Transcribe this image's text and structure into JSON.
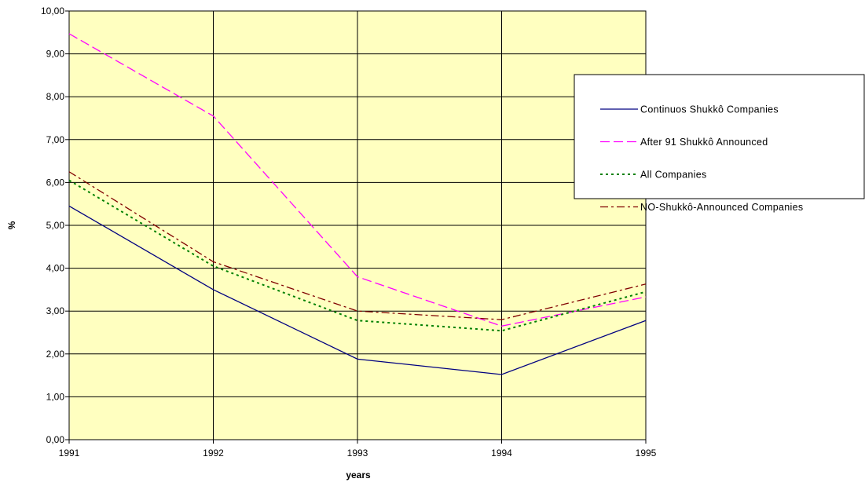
{
  "chart_data": {
    "type": "line",
    "title": "",
    "xlabel": "years",
    "ylabel": "%",
    "x": [
      1991,
      1992,
      1993,
      1994,
      1995
    ],
    "x_tick_labels": [
      "1991",
      "1992",
      "1993",
      "1994",
      "1995"
    ],
    "ylim": [
      0,
      10
    ],
    "y_tick_labels": [
      "0,00",
      "1,00",
      "2,00",
      "3,00",
      "4,00",
      "5,00",
      "6,00",
      "7,00",
      "8,00",
      "9,00",
      "10,00"
    ],
    "grid": true,
    "plot_background": "#ffffc0",
    "legend": "right",
    "series": [
      {
        "name": "Continuos Shukkô Companies",
        "values": [
          5.45,
          3.5,
          1.88,
          1.52,
          2.78
        ],
        "color": "#000080",
        "dash": "solid"
      },
      {
        "name": "After 91 Shukkô Announced",
        "values": [
          9.47,
          7.55,
          3.8,
          2.65,
          3.33
        ],
        "color": "#ff00ff",
        "dash": "dashed"
      },
      {
        "name": "All Companies",
        "values": [
          6.05,
          4.05,
          2.78,
          2.54,
          3.45
        ],
        "color": "#008000",
        "dash": "dotted"
      },
      {
        "name": "NO-Shukkô-Announced Companies",
        "values": [
          6.25,
          4.15,
          3.0,
          2.8,
          3.63
        ],
        "color": "#800000",
        "dash": "dashdot"
      }
    ]
  }
}
